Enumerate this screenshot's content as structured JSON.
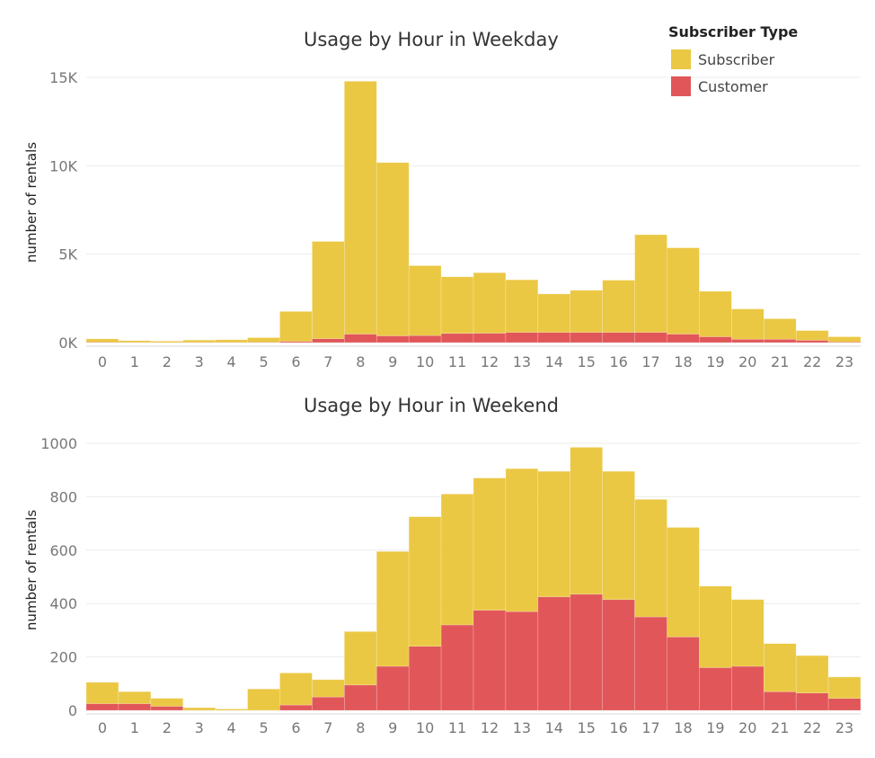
{
  "legend": {
    "title": "Subscriber Type",
    "items": [
      {
        "label": "Subscriber",
        "color": "#EBC844"
      },
      {
        "label": "Customer",
        "color": "#E15759"
      }
    ]
  },
  "chart_data": [
    {
      "type": "bar",
      "stacked": true,
      "title": "Usage by Hour in Weekday",
      "xlabel": "",
      "ylabel": "number of rentals",
      "ylim": [
        0,
        15000
      ],
      "yticks": [
        0,
        5000,
        10000,
        15000
      ],
      "ytick_labels": [
        "0K",
        "5K",
        "10K",
        "15K"
      ],
      "grid": true,
      "categories": [
        "0",
        "1",
        "2",
        "3",
        "4",
        "5",
        "6",
        "7",
        "8",
        "9",
        "10",
        "11",
        "12",
        "13",
        "14",
        "15",
        "16",
        "17",
        "18",
        "19",
        "20",
        "21",
        "22",
        "23"
      ],
      "series": [
        {
          "name": "Customer",
          "color": "#E15759",
          "values": [
            20,
            10,
            5,
            10,
            10,
            20,
            60,
            220,
            480,
            380,
            400,
            520,
            530,
            580,
            580,
            580,
            580,
            580,
            480,
            330,
            190,
            190,
            130,
            30
          ]
        },
        {
          "name": "Subscriber",
          "color": "#EBC844",
          "values": [
            190,
            100,
            45,
            130,
            150,
            260,
            1700,
            5500,
            14300,
            9800,
            3950,
            3200,
            3420,
            2970,
            2170,
            2380,
            2950,
            5520,
            4880,
            2570,
            1710,
            1160,
            550,
            300
          ]
        }
      ]
    },
    {
      "type": "bar",
      "stacked": true,
      "title": "Usage by Hour in Weekend",
      "xlabel": "",
      "ylabel": "number of rentals",
      "ylim": [
        0,
        1000
      ],
      "yticks": [
        0,
        200,
        400,
        600,
        800,
        1000
      ],
      "ytick_labels": [
        "0",
        "200",
        "400",
        "600",
        "800",
        "1000"
      ],
      "grid": true,
      "categories": [
        "0",
        "1",
        "2",
        "3",
        "4",
        "5",
        "6",
        "7",
        "8",
        "9",
        "10",
        "11",
        "12",
        "13",
        "14",
        "15",
        "16",
        "17",
        "18",
        "19",
        "20",
        "21",
        "22",
        "23"
      ],
      "series": [
        {
          "name": "Customer",
          "color": "#E15759",
          "values": [
            25,
            25,
            15,
            0,
            0,
            0,
            20,
            50,
            95,
            165,
            240,
            320,
            375,
            370,
            425,
            435,
            415,
            350,
            275,
            160,
            165,
            70,
            65,
            45
          ]
        },
        {
          "name": "Subscriber",
          "color": "#EBC844",
          "values": [
            80,
            45,
            30,
            10,
            5,
            80,
            120,
            65,
            200,
            430,
            485,
            490,
            495,
            535,
            470,
            550,
            480,
            440,
            410,
            305,
            250,
            180,
            140,
            80
          ]
        }
      ]
    }
  ]
}
